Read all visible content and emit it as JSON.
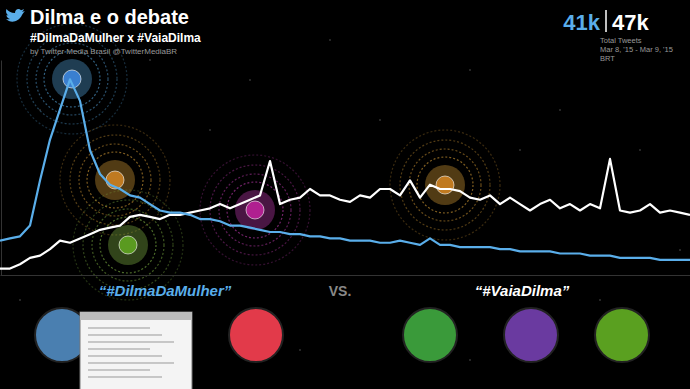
{
  "chart_data": {
    "type": "line",
    "title": "Dilma e o debate",
    "subtitle": "#DilmaDaMulher x #VaiaDilma",
    "annotations": {
      "credit": "by Twitter Media Brasil @TwitterMediaBR",
      "totals": [
        "41k",
        "47k"
      ],
      "totals_label": "Total Tweets",
      "period": [
        "Mar 8, '15 - Mar 9, '15",
        "BRT"
      ],
      "versus": "VS."
    },
    "tick_labels": false,
    "grid": false,
    "x": [
      0,
      1,
      2,
      3,
      4,
      5,
      6,
      7,
      8,
      9,
      10,
      11,
      12,
      13,
      14,
      15,
      16,
      17,
      18,
      19,
      20,
      21,
      22,
      23,
      24,
      25,
      26,
      27,
      28,
      29,
      30,
      31,
      32,
      33,
      34,
      35,
      36,
      37,
      38,
      39,
      40,
      41,
      42,
      43,
      44,
      45,
      46,
      47,
      48,
      49,
      50,
      51,
      52,
      53,
      54,
      55,
      56,
      57,
      58,
      59,
      60,
      61,
      62,
      63,
      64,
      65,
      66,
      67,
      68,
      69
    ],
    "xlim": [
      0,
      69
    ],
    "ylim": [
      0,
      100
    ],
    "series": [
      {
        "name": "“#DilmaDaMulher”",
        "color": "#5aaeea",
        "values": [
          16,
          17,
          18,
          23,
          44,
          63,
          77,
          91,
          81,
          58,
          47,
          42,
          40,
          37,
          36,
          33,
          30,
          29,
          29,
          28,
          26,
          26,
          25,
          23,
          23,
          22,
          21,
          20,
          20,
          19,
          19,
          18,
          18,
          17,
          17,
          16,
          16,
          16,
          15,
          15,
          16,
          15,
          14,
          17,
          14,
          14,
          13,
          13,
          13,
          13,
          12,
          12,
          11,
          11,
          11,
          11,
          10,
          10,
          10,
          9,
          9,
          9,
          8,
          8,
          8,
          8,
          7,
          7,
          7,
          7
        ]
      },
      {
        "name": "“#VaiaDilma”",
        "color": "#ffffff",
        "values": [
          3,
          3,
          5,
          8,
          9,
          12,
          16,
          15,
          17,
          19,
          21,
          22,
          23,
          27,
          28,
          27,
          26,
          28,
          28,
          29,
          30,
          31,
          33,
          31,
          33,
          35,
          37,
          53,
          33,
          35,
          36,
          40,
          37,
          37,
          35,
          34,
          37,
          36,
          40,
          40,
          37,
          44,
          36,
          42,
          40,
          40,
          39,
          36,
          35,
          37,
          33,
          36,
          33,
          30,
          33,
          35,
          31,
          33,
          30,
          33,
          31,
          54,
          30,
          29,
          30,
          33,
          29,
          30,
          29,
          28
        ]
      }
    ]
  }
}
